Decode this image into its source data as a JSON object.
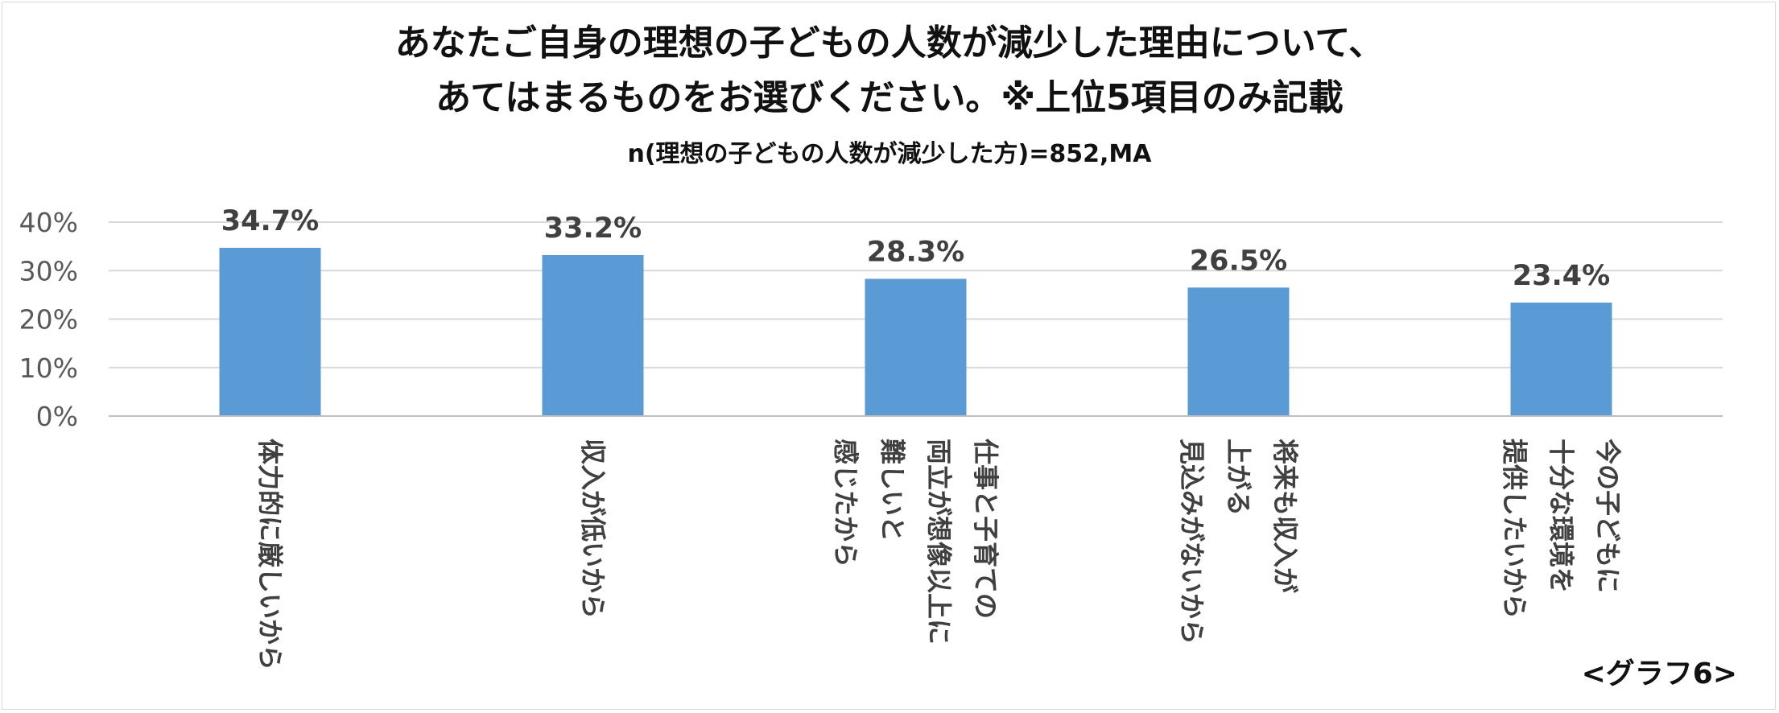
{
  "title_lines": [
    "あなたご自身の理想の子どもの人数が減少した理由について、",
    "あてはまるものをお選びください。※上位5項目のみ記載"
  ],
  "subtitle": "n(理想の子どもの人数が減少した方)=852,MA",
  "caption": "<グラフ6>",
  "chart_data": {
    "type": "bar",
    "title": "あなたご自身の理想の子どもの人数が減少した理由について、あてはまるものをお選びください。※上位5項目のみ記載",
    "subtitle": "n(理想の子どもの人数が減少した方)=852,MA",
    "categories": [
      "体力的に厳しいから",
      "収入が低いから",
      "仕事と子育ての両立が想像以上に難しいと感じたから",
      "将来も収入が上がる見込みがないから",
      "今の子どもに十分な環境を提供したいから"
    ],
    "category_lines": [
      [
        "体力的に厳しいから"
      ],
      [
        "収入が低いから"
      ],
      [
        "仕事と子育ての",
        "両立が想像以上に",
        "難しいと",
        "感じたから"
      ],
      [
        "将来も収入が",
        "上がる",
        "見込みがないから"
      ],
      [
        "今の子どもに",
        "十分な環境を",
        "提供したいから"
      ]
    ],
    "values": [
      34.7,
      33.2,
      28.3,
      26.5,
      23.4
    ],
    "data_labels": [
      "34.7%",
      "33.2%",
      "28.3%",
      "26.5%",
      "23.4%"
    ],
    "yticks": [
      "0%",
      "10%",
      "20%",
      "30%",
      "40%"
    ],
    "ylim": [
      0,
      40
    ],
    "grid": true,
    "bar_color": "#5b9bd5",
    "grid_color": "#d9d9d9",
    "xlabel": "",
    "ylabel": ""
  }
}
